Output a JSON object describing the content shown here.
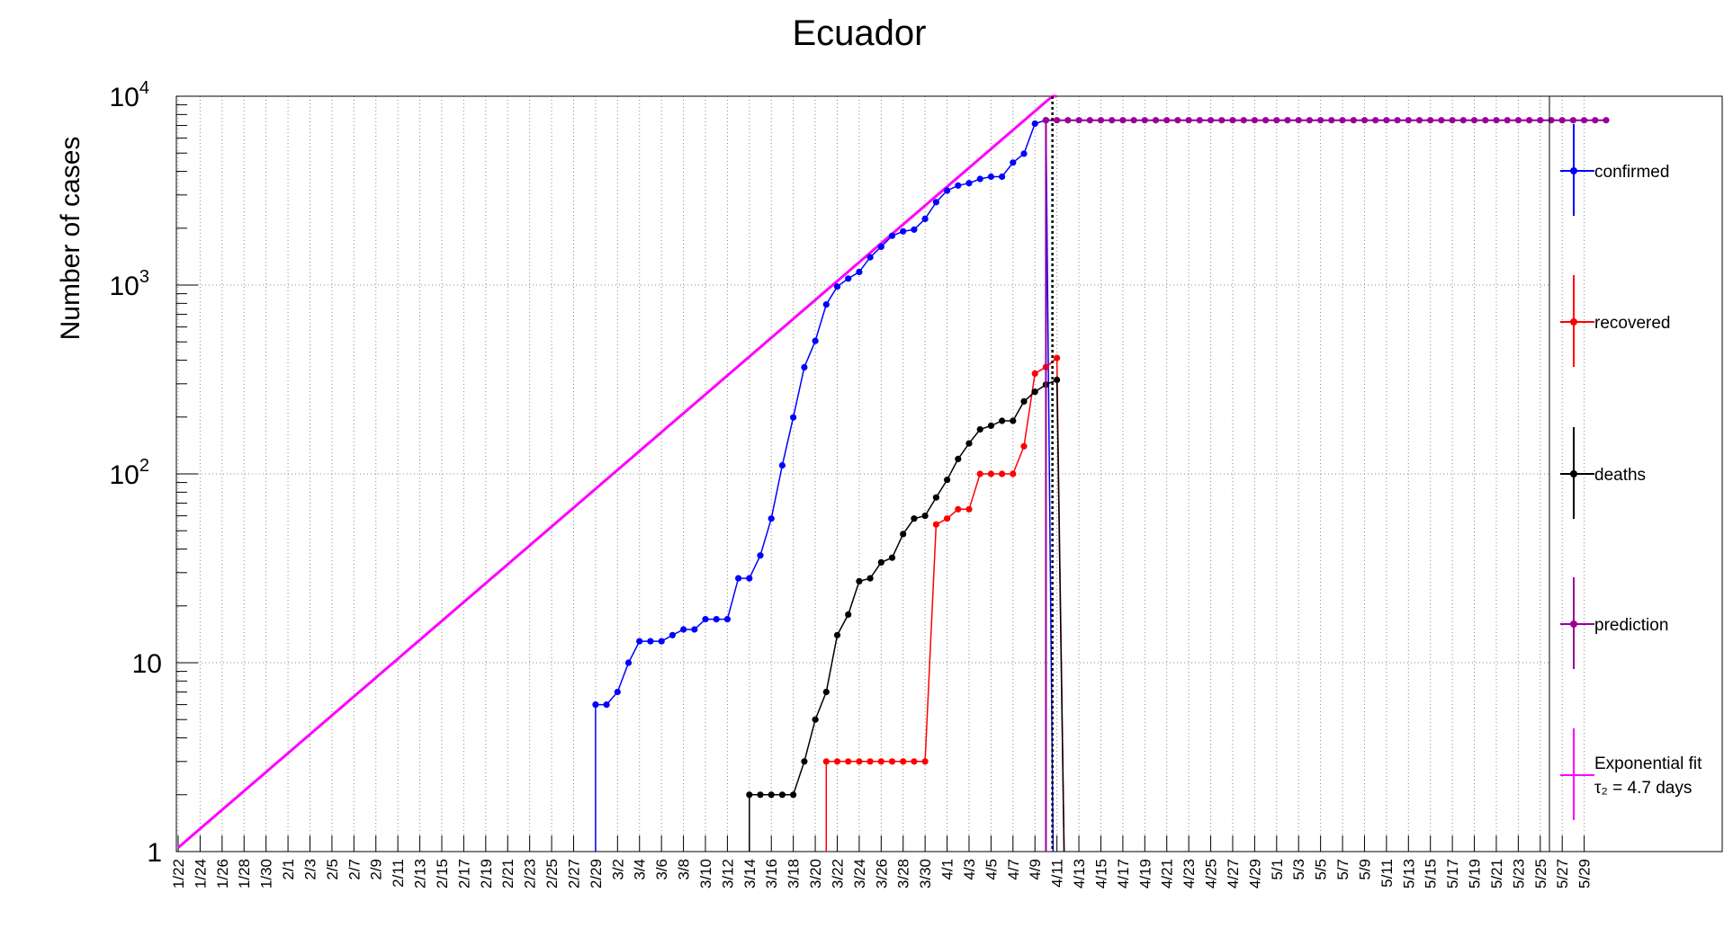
{
  "chart_data": {
    "type": "line",
    "title": "Ecuador",
    "xlabel": "",
    "ylabel": "Number of cases",
    "yscale": "log",
    "ylim": [
      1,
      10000
    ],
    "grid": true,
    "legend_position": "right",
    "x_tick_labels": [
      "1/22",
      "1/24",
      "1/26",
      "1/28",
      "1/30",
      "2/1",
      "2/3",
      "2/5",
      "2/7",
      "2/9",
      "2/11",
      "2/13",
      "2/15",
      "2/17",
      "2/19",
      "2/21",
      "2/23",
      "2/25",
      "2/27",
      "2/29",
      "3/2",
      "3/4",
      "3/6",
      "3/8",
      "3/10",
      "3/12",
      "3/14",
      "3/16",
      "3/18",
      "3/20",
      "3/22",
      "3/24",
      "3/26",
      "3/28",
      "3/30",
      "4/1",
      "4/3",
      "4/5",
      "4/7",
      "4/9",
      "4/11",
      "4/13",
      "4/15",
      "4/17",
      "4/19",
      "4/21",
      "4/23",
      "4/25",
      "4/27",
      "4/29",
      "5/1",
      "5/3",
      "5/5",
      "5/7",
      "5/9",
      "5/11",
      "5/13",
      "5/15",
      "5/17",
      "5/19",
      "5/21",
      "5/23",
      "5/25",
      "5/27",
      "5/29"
    ],
    "y_tick_labels": [
      {
        "base": "1",
        "exp": ""
      },
      {
        "base": "10",
        "exp": ""
      },
      {
        "base": "10",
        "exp": "2"
      },
      {
        "base": "10",
        "exp": "3"
      },
      {
        "base": "10",
        "exp": "4"
      }
    ],
    "series": [
      {
        "name": "confirmed",
        "color": "#0000ff",
        "start": "2/29",
        "values": [
          6,
          6,
          7,
          10,
          13,
          13,
          13,
          14,
          15,
          15,
          17,
          17,
          17,
          28,
          28,
          37,
          58,
          111,
          199,
          367,
          506,
          789,
          981,
          1082,
          1173,
          1403,
          1595,
          1823,
          1924,
          1966,
          2240,
          2748,
          3163,
          3368,
          3465,
          3646,
          3747,
          3747,
          4450,
          4965,
          7161,
          7466
        ]
      },
      {
        "name": "recovered",
        "color": "#ff0000",
        "start": "3/21",
        "values": [
          3,
          3,
          3,
          3,
          3,
          3,
          3,
          3,
          3,
          3,
          54,
          58,
          65,
          65,
          100,
          100,
          100,
          100,
          140,
          340,
          368,
          411
        ]
      },
      {
        "name": "deaths",
        "color": "#000000",
        "start": "3/14",
        "values": [
          2,
          2,
          2,
          2,
          2,
          3,
          5,
          7,
          14,
          18,
          27,
          28,
          34,
          36,
          48,
          58,
          60,
          75,
          93,
          120,
          145,
          172,
          180,
          191,
          191,
          242,
          272,
          297,
          315
        ]
      },
      {
        "name": "prediction",
        "color": "#990099",
        "start": "4/10",
        "values": [
          7466,
          7466,
          7466,
          7466,
          7466,
          7466,
          7466,
          7466,
          7466,
          7466,
          7466,
          7466,
          7466,
          7466,
          7466,
          7466,
          7466,
          7466,
          7466,
          7466,
          7466,
          7466,
          7466,
          7466,
          7466,
          7466,
          7466,
          7466,
          7466,
          7466,
          7466,
          7466,
          7466,
          7466,
          7466,
          7466,
          7466,
          7466,
          7466,
          7466,
          7466,
          7466,
          7466,
          7466,
          7466,
          7466,
          7466,
          7466,
          7466,
          7466,
          7466,
          7466
        ]
      },
      {
        "name": "Exponential fit",
        "color": "#ff00ff",
        "legend_line2": "τ₂ = 4.7 days",
        "x_range": [
          "1/22",
          "4/11"
        ],
        "y_range": [
          1.05,
          10500
        ]
      }
    ]
  }
}
